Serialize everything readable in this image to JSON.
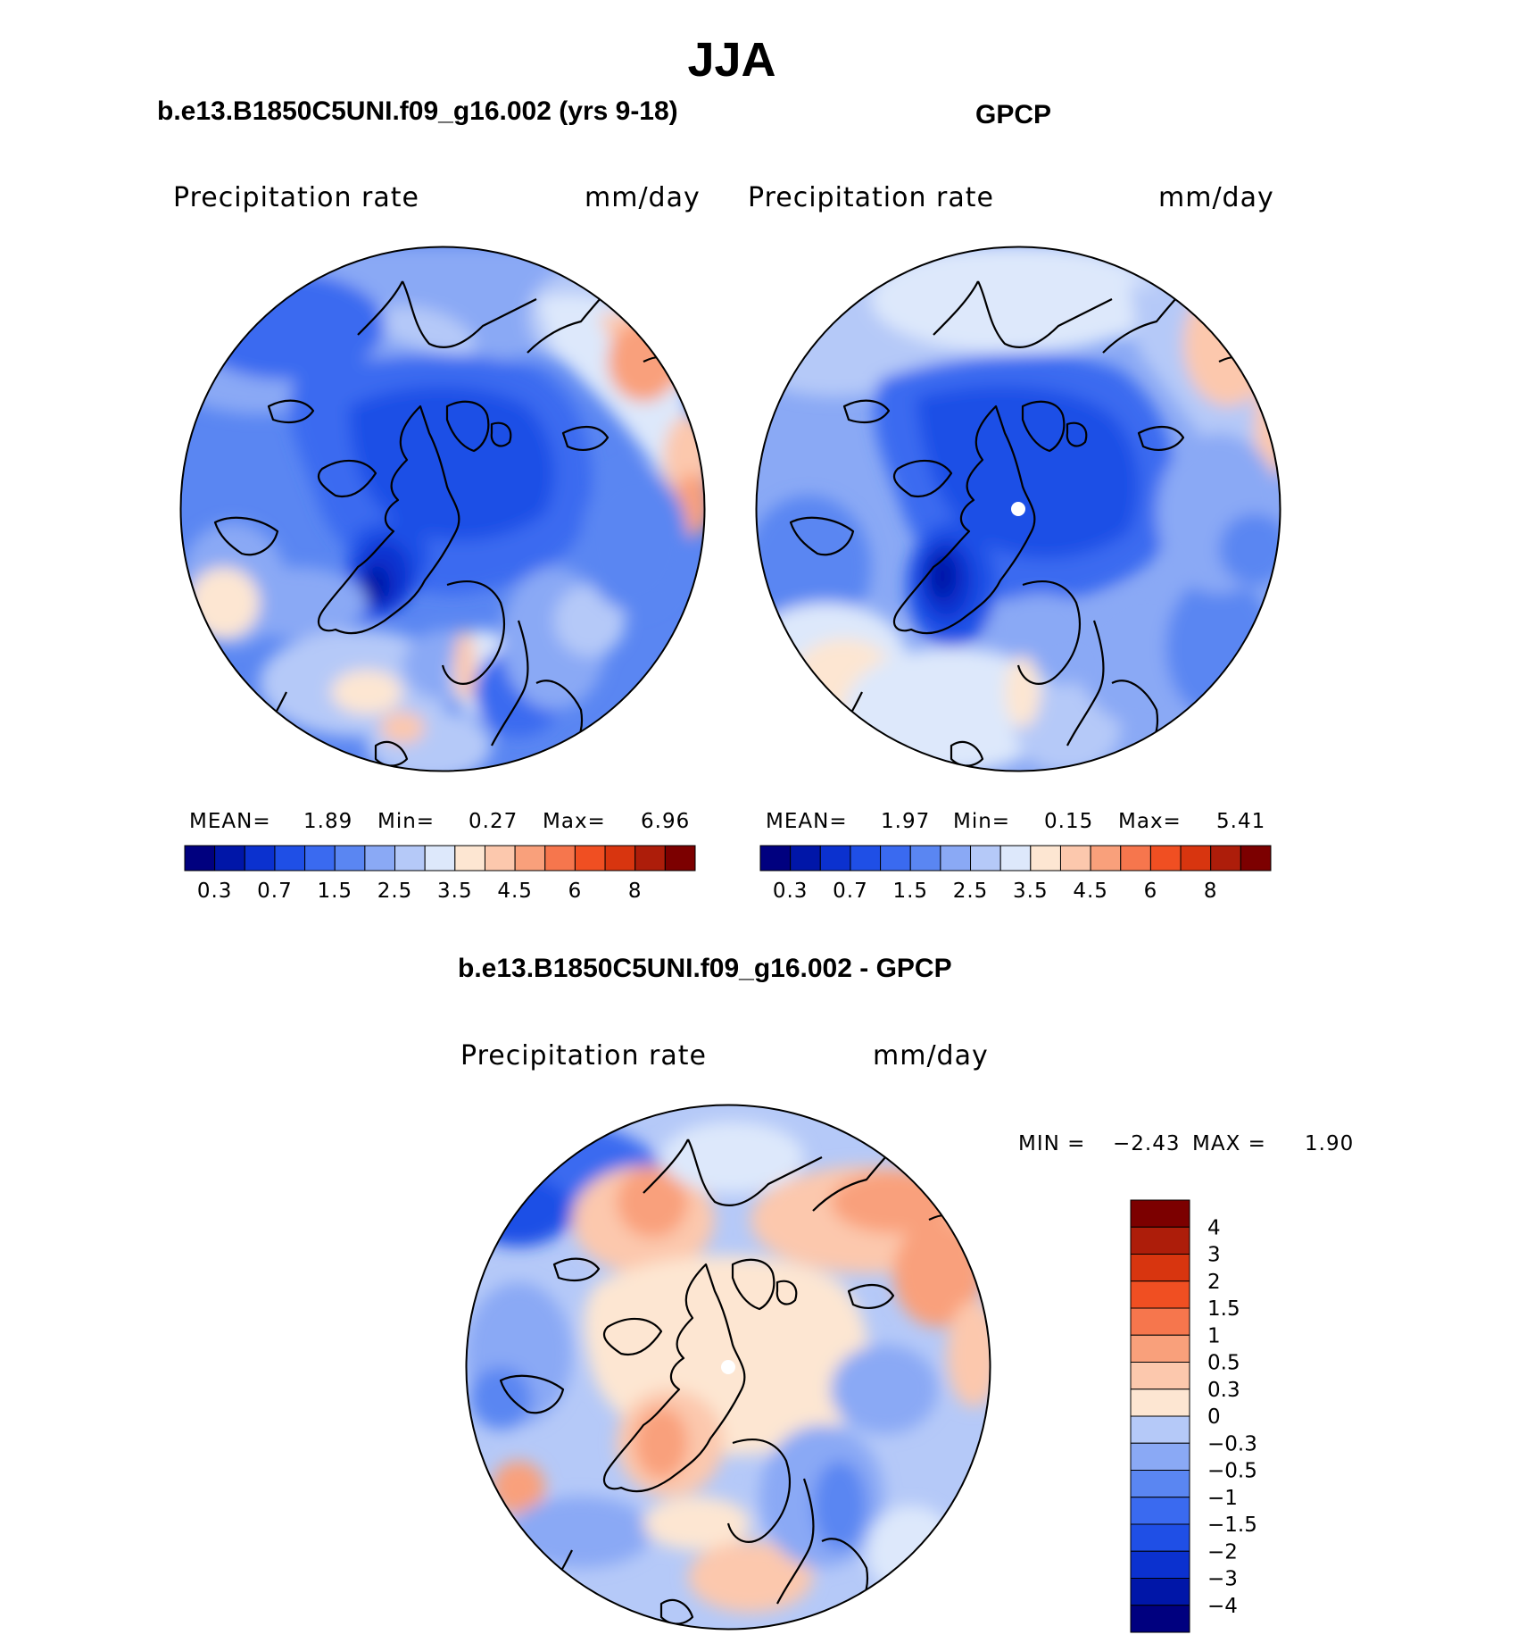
{
  "main_title": "JJA",
  "panels": [
    {
      "title": "b.e13.B1850C5UNI.f09_g16.002 (yrs 9-18)",
      "left_label": "Precipitation  rate",
      "right_label": "mm/day",
      "stats": {
        "mean_label": "MEAN=",
        "mean": "1.89",
        "min_label": "Min=",
        "min": "0.27",
        "max_label": "Max=",
        "max": "6.96"
      }
    },
    {
      "title": "GPCP",
      "left_label": "Precipitation  rate",
      "right_label": "mm/day",
      "stats": {
        "mean_label": "MEAN=",
        "mean": "1.97",
        "min_label": "Min=",
        "min": "0.15",
        "max_label": "Max=",
        "max": "5.41"
      }
    },
    {
      "title": "b.e13.B1850C5UNI.f09_g16.002 - GPCP",
      "left_label": "Precipitation  rate",
      "right_label": "mm/day",
      "stats": {
        "min_label": "MIN  =",
        "min": "−2.43",
        "max_label": "MAX  =",
        "max": "1.90"
      }
    }
  ],
  "colorbar_abs": {
    "colors": [
      "#00007f",
      "#0016a8",
      "#0b31cf",
      "#1f4fe6",
      "#3a6af0",
      "#5a86f2",
      "#8aa9f5",
      "#b5c9f8",
      "#dde8fb",
      "#fde6d2",
      "#fcc8ad",
      "#f9a07b",
      "#f6764d",
      "#f04f22",
      "#d8350f",
      "#ad1d0a",
      "#7c0000"
    ],
    "labels": [
      "0.3",
      "0.7",
      "1.5",
      "2.5",
      "3.5",
      "4.5",
      "6",
      "8"
    ]
  },
  "colorbar_diff": {
    "colors": [
      "#00007f",
      "#0016a8",
      "#0b31cf",
      "#1f4fe6",
      "#3a6af0",
      "#5a86f2",
      "#8aa9f5",
      "#b5c9f8",
      "#dde8fb",
      "#fde6d2",
      "#fcc8ad",
      "#f9a07b",
      "#f6764d",
      "#f04f22",
      "#d8350f",
      "#ad1d0a",
      "#7c0000"
    ],
    "labels": [
      "4",
      "3",
      "2",
      "1.5",
      "1",
      "0.5",
      "0.3",
      "0",
      "−0.3",
      "−0.5",
      "−1",
      "−1.5",
      "−2",
      "−3",
      "−4"
    ]
  }
}
